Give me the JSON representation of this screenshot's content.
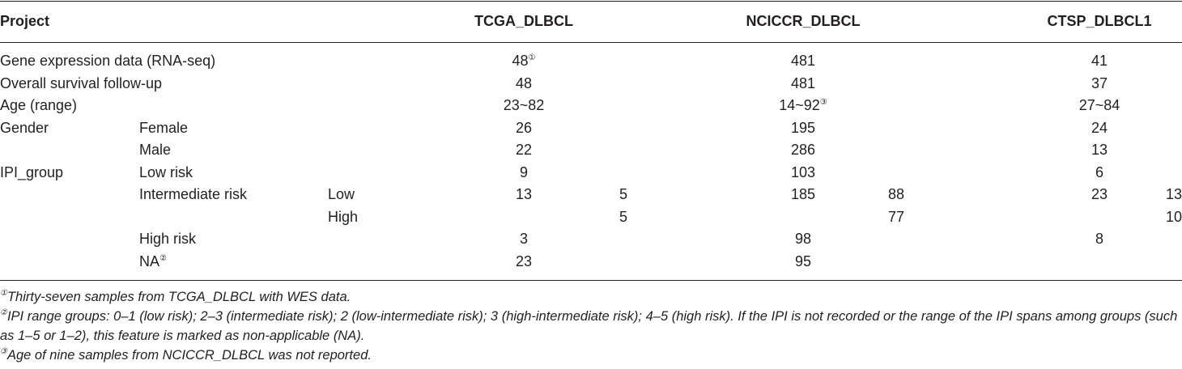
{
  "table": {
    "header": [
      "Project",
      "TCGA_DLBCL",
      "NCICCR_DLBCL",
      "CTSP_DLBCL1"
    ],
    "rows": [
      {
        "feature": "Gene expression data (RNA-seq)",
        "cells": [
          {
            "total": 48,
            "note": "①"
          },
          {
            "total": 481
          },
          {
            "total": 41
          }
        ]
      },
      {
        "feature": "Overall survival follow-up",
        "cells": [
          {
            "total": 48
          },
          {
            "total": 481
          },
          {
            "total": 37
          }
        ]
      },
      {
        "feature": "Age (range)",
        "cells": [
          {
            "total": "23~82"
          },
          {
            "total": "14~92",
            "note": "③"
          },
          {
            "total": "27~84"
          }
        ]
      },
      {
        "feature": "Gender",
        "subgroup": "Female",
        "cells": [
          {
            "total": 26
          },
          {
            "total": 195
          },
          {
            "total": 24
          }
        ]
      },
      {
        "subgroup": "Male",
        "cells": [
          {
            "total": 22
          },
          {
            "total": 286
          },
          {
            "total": 13
          }
        ]
      },
      {
        "feature": "IPI_group",
        "subgroup": "Low risk",
        "cells": [
          {
            "total": 9
          },
          {
            "total": 103
          },
          {
            "total": 6
          }
        ]
      },
      {
        "subgroup": "Intermediate risk",
        "level": "Low",
        "cells": [
          {
            "total": 13,
            "split": 5
          },
          {
            "total": 185,
            "split": 88
          },
          {
            "total": 23,
            "split": 13
          }
        ]
      },
      {
        "level": "High",
        "cells": [
          {
            "split": 5
          },
          {
            "split": 77
          },
          {
            "split": 10
          }
        ]
      },
      {
        "subgroup": "High risk",
        "cells": [
          {
            "total": 3
          },
          {
            "total": 98
          },
          {
            "total": 8
          }
        ]
      },
      {
        "subgroup": "NA",
        "subgroup_note": "②",
        "cells": [
          {
            "total": 23
          },
          {
            "total": 95
          }
        ]
      }
    ]
  },
  "footnotes": [
    {
      "mark": "①",
      "text": "Thirty-seven samples from TCGA_DLBCL with WES data."
    },
    {
      "mark": "②",
      "text": "IPI range groups: 0–1 (low risk); 2–3 (intermediate risk); 2 (low-intermediate risk); 3 (high-intermediate risk); 4–5 (high risk). If the IPI is not recorded or the range of the IPI spans among groups (such as 1–5 or 1–2), this feature is marked as non-applicable (NA)."
    },
    {
      "mark": "③",
      "text": "Age of nine samples from NCICCR_DLBCL was not reported."
    }
  ]
}
